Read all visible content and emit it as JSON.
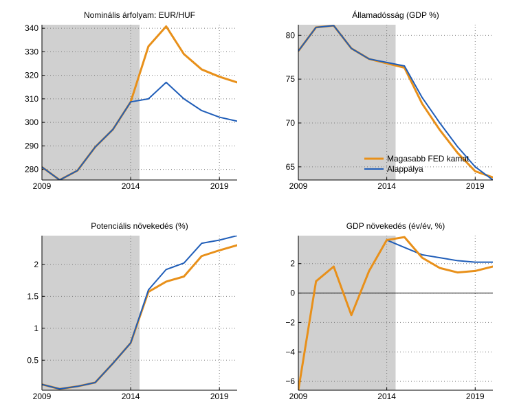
{
  "colors": {
    "higher_fed": "#E8901A",
    "baseline": "#1F5DB8",
    "history_shade": "#D0D0D0",
    "grid": "#7A7A7A",
    "zero_line": "#000000"
  },
  "legend": {
    "higher_fed_label": "Magasabb FED kamat",
    "baseline_label": "Alappálya"
  },
  "chart_data": [
    {
      "id": "exchange-rate",
      "type": "line",
      "title": "Nominális árfolyam: EUR/HUF",
      "xlabel": "",
      "ylabel": "",
      "xlim": [
        2009,
        2020
      ],
      "ylim": [
        275.5,
        341.5
      ],
      "xticks": [
        2009,
        2014,
        2019
      ],
      "yticks": [
        280,
        290,
        300,
        310,
        320,
        330,
        340
      ],
      "ytick_labels": [
        "280",
        "290",
        "300",
        "310",
        "320",
        "330",
        "340"
      ],
      "history_end": 2014.5,
      "zero_line": false,
      "x": [
        2009,
        2010,
        2011,
        2012,
        2013,
        2014,
        2015,
        2016,
        2017,
        2018,
        2019,
        2020
      ],
      "series": [
        {
          "name": "Magasabb FED kamat",
          "key": "higher_fed",
          "values": [
            281,
            275.5,
            279.5,
            289.5,
            297,
            308.7,
            332.3,
            340.8,
            329,
            322.5,
            319.4,
            317
          ]
        },
        {
          "name": "Alappálya",
          "key": "baseline",
          "values": [
            281,
            275.5,
            279.5,
            289.5,
            297,
            308.7,
            310,
            317,
            310,
            305,
            302.2,
            300.5
          ]
        }
      ]
    },
    {
      "id": "public-debt",
      "type": "line",
      "title": "Államadósság (GDP %)",
      "xlabel": "",
      "ylabel": "",
      "xlim": [
        2009,
        2020
      ],
      "ylim": [
        63.5,
        81.2
      ],
      "xticks": [
        2009,
        2014,
        2019
      ],
      "yticks": [
        65,
        70,
        75,
        80
      ],
      "ytick_labels": [
        "65",
        "70",
        "75",
        "80"
      ],
      "history_end": 2014.5,
      "zero_line": false,
      "legend_position": "bottom-right",
      "x": [
        2009,
        2010,
        2011,
        2012,
        2013,
        2014,
        2015,
        2016,
        2017,
        2018,
        2019,
        2020
      ],
      "series": [
        {
          "name": "Magasabb FED kamat",
          "key": "higher_fed",
          "values": [
            78.2,
            80.9,
            81.1,
            78.5,
            77.3,
            76.8,
            76.3,
            72.2,
            69.2,
            66.6,
            64.5,
            63.8
          ]
        },
        {
          "name": "Alappálya",
          "key": "baseline",
          "values": [
            78.2,
            80.9,
            81.1,
            78.5,
            77.3,
            76.9,
            76.5,
            72.9,
            70.0,
            67.3,
            65.0,
            63.5
          ]
        }
      ]
    },
    {
      "id": "potential-growth",
      "type": "line",
      "title": "Potenciális növekedés (%)",
      "xlabel": "",
      "ylabel": "",
      "xlim": [
        2009,
        2020
      ],
      "ylim": [
        0.03,
        2.45
      ],
      "xticks": [
        2009,
        2014,
        2019
      ],
      "yticks": [
        0.5,
        1,
        1.5,
        2
      ],
      "ytick_labels": [
        "0.5",
        "1",
        "1.5",
        "2"
      ],
      "history_end": 2014.5,
      "zero_line": false,
      "x": [
        2009,
        2010,
        2011,
        2012,
        2013,
        2014,
        2015,
        2016,
        2017,
        2018,
        2019,
        2020
      ],
      "series": [
        {
          "name": "Magasabb FED kamat",
          "key": "higher_fed",
          "values": [
            0.12,
            0.05,
            0.09,
            0.15,
            0.45,
            0.77,
            1.57,
            1.73,
            1.81,
            2.13,
            2.22,
            2.3
          ]
        },
        {
          "name": "Alappálya",
          "key": "baseline",
          "values": [
            0.12,
            0.05,
            0.09,
            0.15,
            0.45,
            0.77,
            1.6,
            1.92,
            2.02,
            2.33,
            2.38,
            2.45
          ]
        }
      ]
    },
    {
      "id": "gdp-growth",
      "type": "line",
      "title": "GDP növekedés (év/év, %)",
      "xlabel": "",
      "ylabel": "",
      "xlim": [
        2009,
        2020
      ],
      "ylim": [
        -6.6,
        3.9
      ],
      "xticks": [
        2009,
        2014,
        2019
      ],
      "yticks": [
        -6,
        -4,
        -2,
        0,
        2
      ],
      "ytick_labels": [
        "−6",
        "−4",
        "−2",
        "0",
        "2"
      ],
      "history_end": 2014.5,
      "zero_line": true,
      "x": [
        2009,
        2010,
        2011,
        2012,
        2013,
        2014,
        2015,
        2016,
        2017,
        2018,
        2019,
        2020
      ],
      "series": [
        {
          "name": "Alappálya",
          "key": "baseline",
          "values": [
            -6.6,
            0.8,
            1.8,
            -1.5,
            1.5,
            3.6,
            3.1,
            2.6,
            2.4,
            2.2,
            2.1,
            2.1
          ]
        },
        {
          "name": "Magasabb FED kamat",
          "key": "higher_fed",
          "values": [
            -6.6,
            0.8,
            1.8,
            -1.5,
            1.5,
            3.6,
            3.8,
            2.4,
            1.7,
            1.4,
            1.5,
            1.8
          ]
        }
      ]
    }
  ]
}
